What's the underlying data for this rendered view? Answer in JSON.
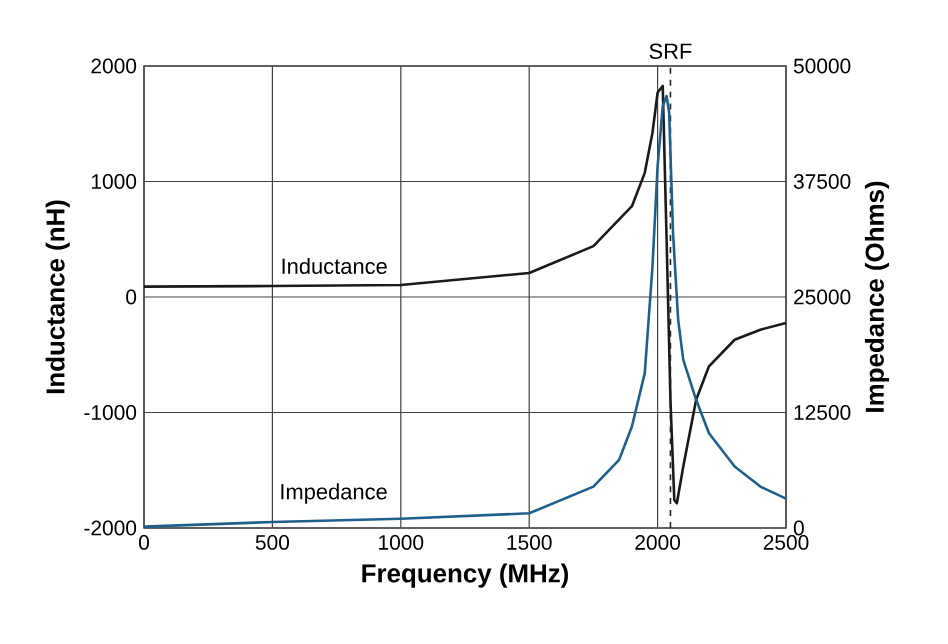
{
  "chart_data": {
    "type": "line",
    "xlabel": "Frequency (MHz)",
    "ylabel": "Inductance (nH)",
    "y2label": "Impedance (Ohms)",
    "xlim": [
      0,
      2500
    ],
    "xticks": [
      0,
      500,
      1000,
      1500,
      2000,
      2500
    ],
    "ylim": [
      -2000,
      2000
    ],
    "yticks": [
      -2000,
      -1000,
      0,
      1000,
      2000
    ],
    "y2lim": [
      0,
      50000
    ],
    "y2ticks": [
      0,
      12500,
      25000,
      37500,
      50000
    ],
    "grid": true,
    "line_style": "solid",
    "ref_lines": [
      {
        "axis": "x",
        "value": 2050,
        "label": "SRF",
        "line_style": "dashed",
        "color": "#222222"
      }
    ],
    "series": [
      {
        "name": "Inductance",
        "color": "#1a1a1a",
        "x": [
          0,
          500,
          1000,
          1500,
          1750,
          1900,
          1950,
          1980,
          2000,
          2020,
          2035,
          2050,
          2065,
          2075,
          2100,
          2150,
          2200,
          2300,
          2400,
          2500
        ],
        "values": [
          90,
          95,
          104,
          208,
          440,
          786,
          1075,
          1422,
          1770,
          1827,
          500,
          -890,
          -1757,
          -1786,
          -1468,
          -890,
          -600,
          -370,
          -283,
          -225
        ]
      },
      {
        "name": "Impedance",
        "color": "#1f5f8b",
        "axis": "y2",
        "x": [
          0,
          500,
          1000,
          1500,
          1750,
          1850,
          1900,
          1950,
          1980,
          2000,
          2020,
          2035,
          2045,
          2060,
          2080,
          2100,
          2150,
          2200,
          2300,
          2400,
          2500
        ],
        "values": [
          150,
          650,
          1000,
          1590,
          4480,
          7370,
          10980,
          16760,
          28300,
          39160,
          45660,
          46750,
          44940,
          31940,
          22540,
          18200,
          13870,
          10260,
          6650,
          4480,
          3180
        ]
      }
    ]
  }
}
